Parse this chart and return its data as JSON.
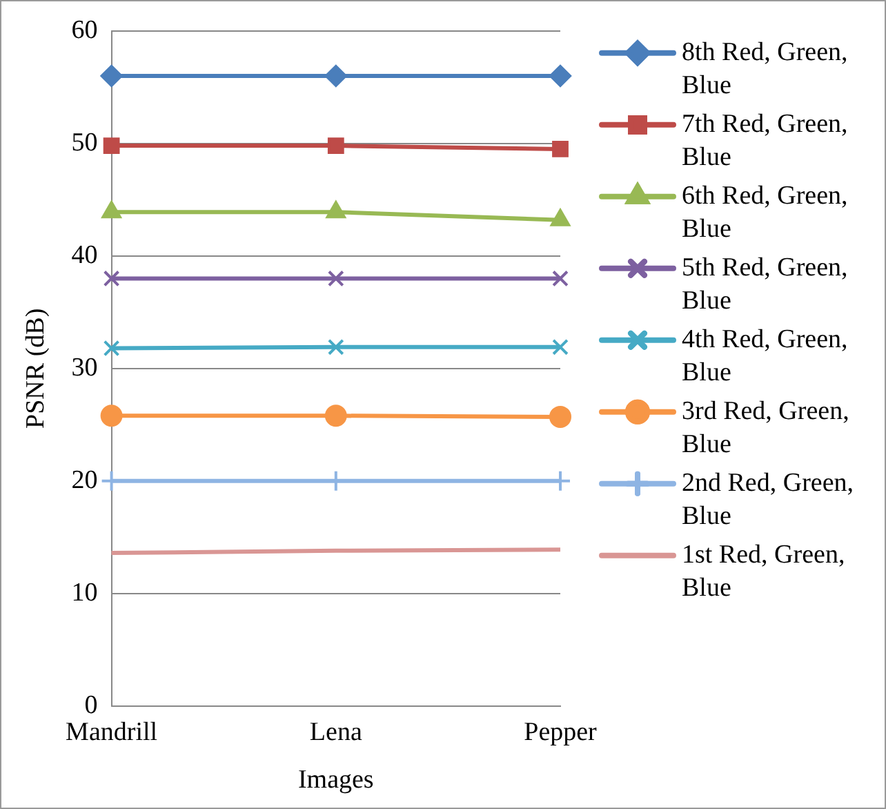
{
  "chart_data": {
    "type": "line",
    "xlabel": "Images",
    "ylabel": "PSNR (dB)",
    "categories": [
      "Mandrill",
      "Lena",
      "Pepper"
    ],
    "series": [
      {
        "name": "8th Red, Green, Blue",
        "color": "#4a7ebb",
        "marker": "diamond",
        "values": [
          56,
          56,
          56
        ]
      },
      {
        "name": "7th Red, Green, Blue",
        "color": "#be4b48",
        "marker": "square",
        "values": [
          49.8,
          49.8,
          49.5
        ]
      },
      {
        "name": "6th Red, Green, Blue",
        "color": "#98b954",
        "marker": "triangle",
        "values": [
          43.9,
          43.9,
          43.2
        ]
      },
      {
        "name": "5th Red, Green, Blue",
        "color": "#7d60a0",
        "marker": "cross",
        "values": [
          38,
          38,
          38
        ]
      },
      {
        "name": "4th Red, Green, Blue",
        "color": "#46aac5",
        "marker": "cross",
        "values": [
          31.8,
          31.9,
          31.9
        ]
      },
      {
        "name": "3rd Red, Green, Blue",
        "color": "#f79646",
        "marker": "circle",
        "values": [
          25.8,
          25.8,
          25.7
        ]
      },
      {
        "name": "2nd Red, Green, Blue",
        "color": "#8eb4e3",
        "marker": "plus",
        "values": [
          20,
          20,
          20
        ]
      },
      {
        "name": "1st Red, Green, Blue",
        "color": "#d99694",
        "marker": "none",
        "values": [
          13.6,
          13.8,
          13.9
        ]
      }
    ],
    "ylim": [
      0,
      60
    ],
    "yticks": [
      0,
      10,
      20,
      30,
      40,
      50,
      60
    ],
    "grid": "y",
    "legend": "right"
  }
}
